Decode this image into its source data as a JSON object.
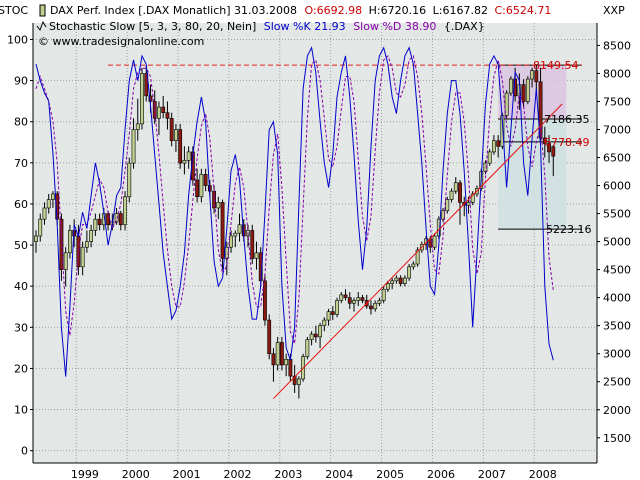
{
  "header": {
    "line1": {
      "name": "DAX Perf. Index [.DAX Monatlich] 31.03.2008",
      "open": "O:6692.98",
      "high": "H:6720.16",
      "low": "L:6167.82",
      "close": "C:6524.71"
    },
    "line2": {
      "name": "Stochastic Slow [5, 3, 3, 80, 20, Nein]",
      "k": "Slow %K 21.93",
      "d": "Slow %D 38.90",
      "symbol": "{.DAX}"
    },
    "copyright": "© www.tradesignalonline.com",
    "left_axis_tag": "STOC",
    "right_axis_tag": "XXP"
  },
  "colors": {
    "background": "#e3e8e6",
    "grid": "#9ba3a1",
    "up_candle": "#c2d192",
    "down_candle": "#8b1a12",
    "wick": "#000000",
    "stoch_k": "#0000cc",
    "stoch_d": "#8800aa",
    "trendline": "#e81010",
    "resistance": "#dd2222",
    "fib_zone": "#d9c4df",
    "fib_zone_lower": "#cfe0e2",
    "open_value": "#cc0000",
    "high_low_value": "#000000",
    "close_value": "#cc0000"
  },
  "chart_data": {
    "type": "candlestick",
    "interval": "monthly",
    "y_right": {
      "label": "",
      "ticks": [
        1500,
        2000,
        2500,
        3000,
        3500,
        4000,
        4500,
        5000,
        5500,
        6000,
        6500,
        7000,
        7500,
        8000,
        8500
      ],
      "range": [
        1050,
        8900
      ]
    },
    "y_left": {
      "label": "",
      "ticks": [
        0,
        10,
        20,
        30,
        40,
        50,
        60,
        70,
        80,
        90,
        100
      ],
      "range": [
        -3,
        104
      ]
    },
    "x_ticks": [
      "1999",
      "2000",
      "2001",
      "2002",
      "2003",
      "2004",
      "2005",
      "2006",
      "2007",
      "2008"
    ],
    "grid": true,
    "ohlc": [
      [
        5000,
        5200,
        4800,
        5100
      ],
      [
        5100,
        5500,
        5000,
        5400
      ],
      [
        5400,
        5700,
        5300,
        5600
      ],
      [
        5600,
        5850,
        5500,
        5750
      ],
      [
        5750,
        5900,
        5600,
        5850
      ],
      [
        5850,
        5900,
        5300,
        5400
      ],
      [
        5400,
        5500,
        4300,
        4500
      ],
      [
        4500,
        4900,
        4200,
        4800
      ],
      [
        4800,
        5300,
        4700,
        5200
      ],
      [
        5200,
        5400,
        4900,
        5100
      ],
      [
        5100,
        5300,
        4400,
        4550
      ],
      [
        4550,
        5000,
        4400,
        4900
      ],
      [
        4900,
        5200,
        4800,
        5000
      ],
      [
        5000,
        5300,
        4900,
        5200
      ],
      [
        5200,
        5500,
        5100,
        5400
      ],
      [
        5400,
        5500,
        5200,
        5300
      ],
      [
        5300,
        5600,
        5200,
        5500
      ],
      [
        5500,
        5550,
        5200,
        5300
      ],
      [
        5300,
        5500,
        5200,
        5350
      ],
      [
        5350,
        5600,
        5300,
        5500
      ],
      [
        5500,
        5550,
        5200,
        5300
      ],
      [
        5300,
        5900,
        5200,
        5800
      ],
      [
        5800,
        6500,
        5700,
        6400
      ],
      [
        6400,
        7200,
        6300,
        7000
      ],
      [
        7000,
        7550,
        6800,
        7100
      ],
      [
        7100,
        8100,
        7000,
        8000
      ],
      [
        8000,
        8150,
        7500,
        7600
      ],
      [
        7600,
        7800,
        7300,
        7500
      ],
      [
        7500,
        7700,
        7100,
        7200
      ],
      [
        7200,
        7500,
        6900,
        7400
      ],
      [
        7400,
        7600,
        7200,
        7300
      ],
      [
        7300,
        7500,
        7000,
        7200
      ],
      [
        7200,
        7300,
        6700,
        6800
      ],
      [
        6800,
        7100,
        6600,
        7000
      ],
      [
        7000,
        7100,
        6300,
        6400
      ],
      [
        6400,
        6700,
        6200,
        6450
      ],
      [
        6450,
        6700,
        6300,
        6600
      ],
      [
        6600,
        6700,
        6000,
        6100
      ],
      [
        6100,
        6300,
        5700,
        5800
      ],
      [
        5800,
        6300,
        5700,
        6200
      ],
      [
        6200,
        6300,
        5900,
        6000
      ],
      [
        6000,
        6100,
        5800,
        5900
      ],
      [
        5900,
        6000,
        5500,
        5600
      ],
      [
        5600,
        5800,
        5400,
        5700
      ],
      [
        5700,
        5750,
        4500,
        4700
      ],
      [
        4700,
        5000,
        4400,
        4900
      ],
      [
        4900,
        5200,
        4800,
        5100
      ],
      [
        5100,
        5200,
        4900,
        5150
      ],
      [
        5150,
        5500,
        5000,
        5300
      ],
      [
        5300,
        5400,
        5000,
        5100
      ],
      [
        5100,
        5300,
        4900,
        5200
      ],
      [
        5200,
        5300,
        4600,
        4700
      ],
      [
        4700,
        5000,
        4500,
        4800
      ],
      [
        4800,
        4900,
        4200,
        4300
      ],
      [
        4300,
        4400,
        3500,
        3600
      ],
      [
        3600,
        3700,
        2900,
        3000
      ],
      [
        3000,
        3100,
        2500,
        2800
      ],
      [
        2800,
        3300,
        2700,
        3200
      ],
      [
        3200,
        3300,
        2700,
        2800
      ],
      [
        2800,
        3000,
        2600,
        2900
      ],
      [
        2900,
        3000,
        2500,
        2600
      ],
      [
        2600,
        2800,
        2300,
        2450
      ],
      [
        2450,
        2600,
        2200,
        2550
      ],
      [
        2550,
        3000,
        2500,
        2950
      ],
      [
        2950,
        3300,
        2900,
        3250
      ],
      [
        3250,
        3400,
        3150,
        3350
      ],
      [
        3350,
        3500,
        3200,
        3300
      ],
      [
        3300,
        3550,
        3100,
        3500
      ],
      [
        3500,
        3650,
        3400,
        3600
      ],
      [
        3600,
        3800,
        3500,
        3750
      ],
      [
        3750,
        3850,
        3600,
        3700
      ],
      [
        3700,
        4000,
        3650,
        3950
      ],
      [
        3950,
        4100,
        3900,
        4050
      ],
      [
        4050,
        4150,
        3950,
        4000
      ],
      [
        4000,
        4100,
        3800,
        3900
      ],
      [
        3900,
        4000,
        3750,
        3950
      ],
      [
        3950,
        4100,
        3850,
        4000
      ],
      [
        4000,
        4050,
        3900,
        3950
      ],
      [
        3950,
        4050,
        3800,
        3850
      ],
      [
        3850,
        3950,
        3700,
        3800
      ],
      [
        3800,
        3950,
        3750,
        3900
      ],
      [
        3900,
        4000,
        3850,
        3950
      ],
      [
        3950,
        4200,
        3900,
        4150
      ],
      [
        4150,
        4300,
        4100,
        4250
      ],
      [
        4250,
        4350,
        4150,
        4300
      ],
      [
        4300,
        4400,
        4250,
        4350
      ],
      [
        4350,
        4400,
        4200,
        4250
      ],
      [
        4250,
        4400,
        4200,
        4350
      ],
      [
        4350,
        4600,
        4300,
        4550
      ],
      [
        4550,
        4650,
        4500,
        4600
      ],
      [
        4600,
        4900,
        4550,
        4850
      ],
      [
        4850,
        5000,
        4800,
        4950
      ],
      [
        4950,
        5100,
        4850,
        5050
      ],
      [
        5050,
        5100,
        4800,
        4900
      ],
      [
        4900,
        5150,
        4850,
        5100
      ],
      [
        5100,
        5450,
        5050,
        5400
      ],
      [
        5400,
        5600,
        5350,
        5550
      ],
      [
        5550,
        5800,
        5500,
        5750
      ],
      [
        5750,
        5950,
        5700,
        5900
      ],
      [
        5900,
        6150,
        5850,
        6050
      ],
      [
        6050,
        6100,
        5300,
        5700
      ],
      [
        5700,
        5800,
        5450,
        5650
      ],
      [
        5650,
        5800,
        5500,
        5700
      ],
      [
        5700,
        5900,
        5650,
        5850
      ],
      [
        5850,
        6000,
        5800,
        5950
      ],
      [
        5950,
        6300,
        5900,
        6250
      ],
      [
        6250,
        6450,
        6200,
        6400
      ],
      [
        6400,
        6650,
        6350,
        6600
      ],
      [
        6600,
        6900,
        6550,
        6800
      ],
      [
        6800,
        6900,
        6500,
        6700
      ],
      [
        6700,
        7300,
        6650,
        7250
      ],
      [
        7250,
        7700,
        7200,
        7650
      ],
      [
        7650,
        7950,
        7600,
        7900
      ],
      [
        7900,
        8100,
        7500,
        7600
      ],
      [
        7600,
        8000,
        7350,
        7800
      ],
      [
        7800,
        7900,
        7400,
        7500
      ],
      [
        7500,
        7950,
        7450,
        7900
      ],
      [
        7900,
        8100,
        7750,
        8050
      ],
      [
        8050,
        8150,
        7700,
        7850
      ],
      [
        7850,
        8100,
        6800,
        6850
      ],
      [
        6850,
        7050,
        6500,
        6750
      ],
      [
        6750,
        6900,
        6400,
        6600
      ],
      [
        6692.98,
        6720.16,
        6167.82,
        6524.71
      ]
    ],
    "stoch_k": [
      94,
      90,
      87,
      85,
      72,
      55,
      30,
      18,
      35,
      55,
      52,
      58,
      54,
      62,
      70,
      65,
      58,
      50,
      55,
      62,
      64,
      78,
      90,
      95,
      90,
      96,
      94,
      84,
      72,
      60,
      48,
      40,
      32,
      34,
      40,
      48,
      62,
      72,
      80,
      86,
      80,
      62,
      46,
      40,
      42,
      54,
      68,
      72,
      66,
      52,
      40,
      32,
      32,
      40,
      58,
      78,
      80,
      72,
      40,
      25,
      22,
      30,
      60,
      88,
      96,
      98,
      92,
      80,
      70,
      64,
      72,
      86,
      92,
      96,
      86,
      72,
      56,
      44,
      54,
      74,
      90,
      96,
      98,
      94,
      86,
      82,
      90,
      96,
      98,
      94,
      82,
      70,
      54,
      40,
      38,
      50,
      68,
      82,
      90,
      90,
      82,
      68,
      50,
      30,
      48,
      66,
      84,
      94,
      96,
      94,
      80,
      64,
      78,
      92,
      90,
      70,
      62,
      76,
      88,
      74,
      40,
      26,
      22
    ],
    "stoch_d": [
      88,
      91,
      88,
      85,
      80,
      70,
      52,
      34,
      28,
      36,
      48,
      55,
      55,
      58,
      62,
      66,
      64,
      58,
      54,
      56,
      60,
      68,
      77,
      88,
      92,
      93,
      93,
      91,
      83,
      72,
      60,
      49,
      40,
      35,
      35,
      41,
      50,
      61,
      71,
      79,
      82,
      76,
      63,
      49,
      43,
      45,
      55,
      65,
      69,
      64,
      53,
      41,
      35,
      35,
      43,
      59,
      72,
      77,
      64,
      46,
      29,
      26,
      37,
      59,
      81,
      94,
      95,
      90,
      81,
      71,
      69,
      74,
      83,
      91,
      91,
      85,
      71,
      57,
      51,
      57,
      73,
      87,
      95,
      96,
      93,
      87,
      86,
      89,
      95,
      96,
      91,
      82,
      69,
      55,
      44,
      43,
      52,
      67,
      80,
      87,
      87,
      80,
      67,
      49,
      43,
      48,
      66,
      81,
      91,
      95,
      90,
      79,
      74,
      78,
      87,
      84,
      74,
      69,
      75,
      79,
      67,
      47,
      39
    ],
    "resistance_level": 8149.54,
    "trendline": {
      "from": {
        "index": 56,
        "value": 2200
      },
      "to": {
        "index": 122,
        "value": 7100
      }
    },
    "fib_levels": [
      {
        "label": "8149.54",
        "value": 8149.54,
        "color": "#cc0000"
      },
      {
        "label": "7186.35",
        "value": 7186.35,
        "color": "#000000"
      },
      {
        "label": "6778.49",
        "value": 6778.49,
        "color": "#cc0000"
      },
      {
        "label": "5223.16",
        "value": 5223.16,
        "color": "#000000"
      }
    ]
  }
}
